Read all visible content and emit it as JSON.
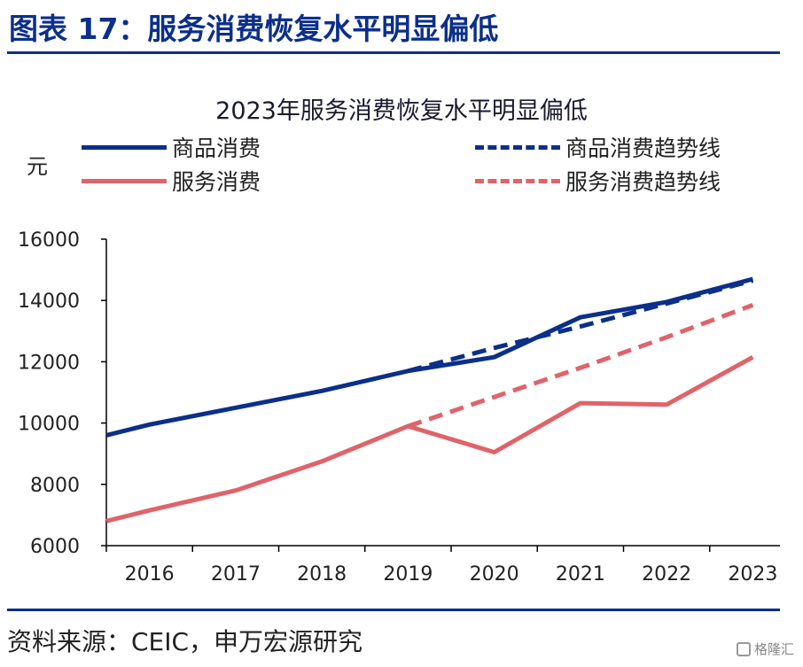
{
  "figure_title": "图表 17：服务消费恢复水平明显偏低",
  "source_text": "资料来源：CEIC，申万宏源研究",
  "watermark_text": "格隆汇",
  "colors": {
    "goods": "#0b2f8a",
    "services": "#e0636a",
    "text": "#222222"
  },
  "chart_data": {
    "type": "line",
    "title": "2023年服务消费恢复水平明显偏低",
    "ylabel": "元",
    "xlabel": "",
    "categories": [
      "2016",
      "2017",
      "2018",
      "2019",
      "2020",
      "2021",
      "2022",
      "2023"
    ],
    "ylim": [
      6000,
      16000
    ],
    "yticks": [
      6000,
      8000,
      10000,
      12000,
      14000,
      16000
    ],
    "grid": false,
    "legend_position": "top",
    "series": [
      {
        "name": "商品消费",
        "style": "solid",
        "color": "#0b2f8a",
        "x": [
          2015.5,
          2016,
          2017,
          2018,
          2019,
          2020,
          2021,
          2022,
          2023
        ],
        "values": [
          9600,
          9950,
          10500,
          11050,
          11700,
          12150,
          13450,
          13950,
          14700
        ]
      },
      {
        "name": "商品消费趋势线",
        "style": "dashed",
        "color": "#0b2f8a",
        "x": [
          2019,
          2020,
          2021,
          2022,
          2023
        ],
        "values": [
          11700,
          12450,
          13150,
          13900,
          14650
        ]
      },
      {
        "name": "服务消费",
        "style": "solid",
        "color": "#e0636a",
        "x": [
          2015.5,
          2016,
          2017,
          2018,
          2019,
          2020,
          2021,
          2022,
          2023
        ],
        "values": [
          6800,
          7150,
          7800,
          8750,
          9900,
          9050,
          10650,
          10600,
          12150
        ]
      },
      {
        "name": "服务消费趋势线",
        "style": "dashed",
        "color": "#e0636a",
        "x": [
          2019,
          2020,
          2021,
          2022,
          2023
        ],
        "values": [
          9900,
          10850,
          11800,
          12800,
          13850
        ]
      }
    ]
  }
}
